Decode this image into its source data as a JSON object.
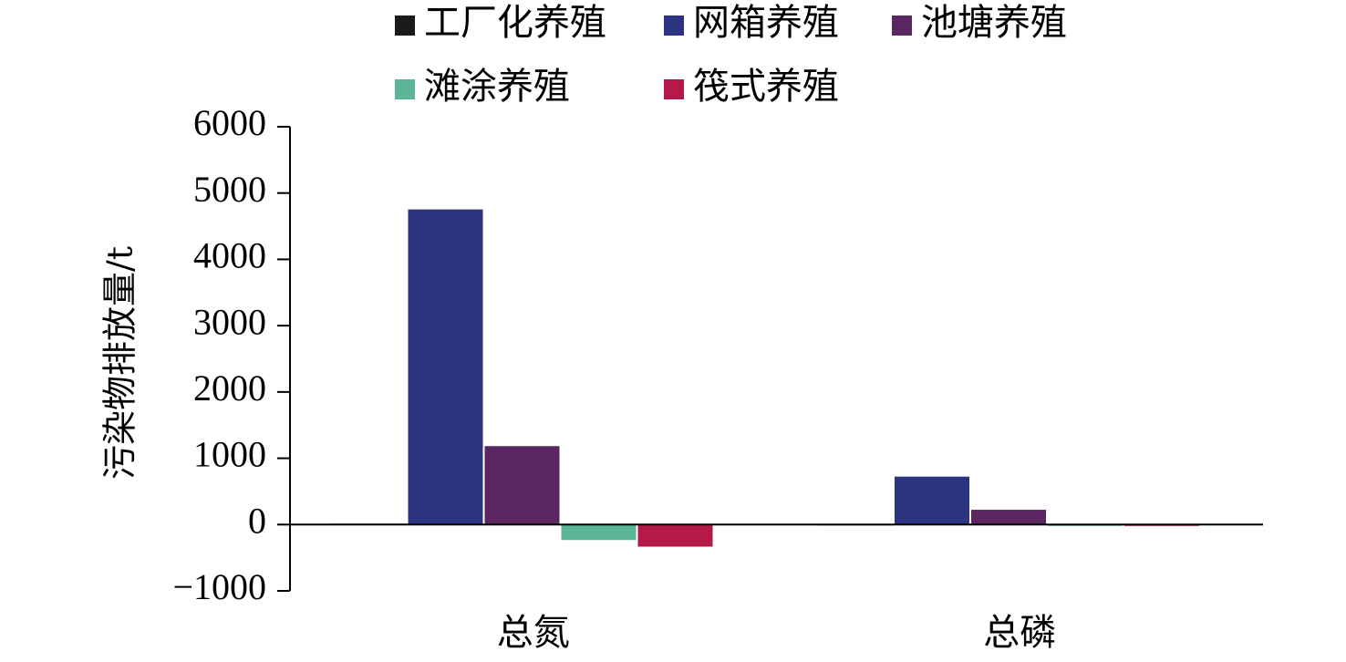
{
  "chart_data": {
    "type": "bar",
    "categories": [
      "总氮",
      "总磷"
    ],
    "series": [
      {
        "name": "工厂化养殖",
        "color": "#1a1a1a",
        "values": [
          20,
          8
        ]
      },
      {
        "name": "网箱养殖",
        "color": "#2c3380",
        "values": [
          4760,
          730
        ]
      },
      {
        "name": "池塘养殖",
        "color": "#5a2560",
        "values": [
          1190,
          230
        ]
      },
      {
        "name": "滩涂养殖",
        "color": "#5cb595",
        "values": [
          -240,
          -15
        ]
      },
      {
        "name": "筏式养殖",
        "color": "#b5194a",
        "values": [
          -340,
          -25
        ]
      }
    ],
    "xlabel": "",
    "ylabel": "污染物排放量/t",
    "ylim": [
      -1000,
      6000
    ],
    "yticks": [
      "6000",
      "5000",
      "4000",
      "3000",
      "2000",
      "1000",
      "0",
      "−1000"
    ],
    "grid": false,
    "legend_position": "top"
  }
}
